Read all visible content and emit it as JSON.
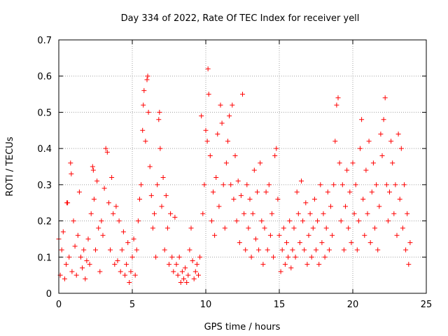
{
  "chart_data": {
    "type": "scatter",
    "title": "Day 334 of 2022, Rate Of TEC Index for receiver yell",
    "xlabel": "GPS time / hours",
    "ylabel": "ROTI / TECUs",
    "xlim": [
      0,
      25
    ],
    "ylim": [
      0,
      0.7
    ],
    "xticks": [
      "0",
      "5",
      "10",
      "15",
      "20",
      "25"
    ],
    "yticks": [
      "0",
      "0.1",
      "0.2",
      "0.3",
      "0.4",
      "0.5",
      "0.6",
      "0.7"
    ],
    "xtick_values": [
      0,
      5,
      10,
      15,
      20,
      25
    ],
    "ytick_values": [
      0,
      0.1,
      0.2,
      0.3,
      0.4,
      0.5,
      0.6,
      0.7
    ],
    "grid": true,
    "marker": "+",
    "color": "#ff0000",
    "series": [
      {
        "points": [
          [
            0.0,
            0.15
          ],
          [
            0.1,
            0.05
          ],
          [
            0.2,
            0.12
          ],
          [
            0.3,
            0.17
          ],
          [
            0.4,
            0.04
          ],
          [
            0.5,
            0.08
          ],
          [
            0.55,
            0.25
          ],
          [
            0.6,
            0.25
          ],
          [
            0.7,
            0.1
          ],
          [
            0.8,
            0.36
          ],
          [
            0.85,
            0.33
          ],
          [
            0.9,
            0.06
          ],
          [
            1.0,
            0.2
          ],
          [
            1.1,
            0.13
          ],
          [
            1.2,
            0.05
          ],
          [
            1.3,
            0.16
          ],
          [
            1.4,
            0.28
          ],
          [
            1.5,
            0.1
          ],
          [
            1.6,
            0.07
          ],
          [
            1.7,
            0.12
          ],
          [
            1.8,
            0.04
          ],
          [
            1.9,
            0.09
          ],
          [
            2.0,
            0.15
          ],
          [
            2.1,
            0.08
          ],
          [
            2.2,
            0.22
          ],
          [
            2.3,
            0.35
          ],
          [
            2.35,
            0.34
          ],
          [
            2.4,
            0.26
          ],
          [
            2.5,
            0.12
          ],
          [
            2.6,
            0.31
          ],
          [
            2.7,
            0.18
          ],
          [
            2.8,
            0.06
          ],
          [
            2.9,
            0.2
          ],
          [
            3.0,
            0.16
          ],
          [
            3.1,
            0.29
          ],
          [
            3.2,
            0.4
          ],
          [
            3.3,
            0.39
          ],
          [
            3.4,
            0.25
          ],
          [
            3.5,
            0.12
          ],
          [
            3.6,
            0.32
          ],
          [
            3.7,
            0.22
          ],
          [
            3.8,
            0.08
          ],
          [
            3.9,
            0.24
          ],
          [
            4.0,
            0.09
          ],
          [
            4.1,
            0.2
          ],
          [
            4.2,
            0.06
          ],
          [
            4.3,
            0.12
          ],
          [
            4.4,
            0.17
          ],
          [
            4.5,
            0.05
          ],
          [
            4.6,
            0.08
          ],
          [
            4.7,
            0.14
          ],
          [
            4.8,
            0.03
          ],
          [
            4.9,
            0.06
          ],
          [
            5.0,
            0.1
          ],
          [
            5.1,
            0.15
          ],
          [
            5.2,
            0.05
          ],
          [
            5.3,
            0.12
          ],
          [
            5.4,
            0.2
          ],
          [
            5.5,
            0.26
          ],
          [
            5.6,
            0.3
          ],
          [
            5.7,
            0.45
          ],
          [
            5.75,
            0.52
          ],
          [
            5.8,
            0.56
          ],
          [
            5.9,
            0.42
          ],
          [
            6.0,
            0.59
          ],
          [
            6.05,
            0.6
          ],
          [
            6.1,
            0.5
          ],
          [
            6.2,
            0.35
          ],
          [
            6.3,
            0.27
          ],
          [
            6.4,
            0.18
          ],
          [
            6.5,
            0.22
          ],
          [
            6.6,
            0.1
          ],
          [
            6.7,
            0.3
          ],
          [
            6.8,
            0.48
          ],
          [
            6.85,
            0.5
          ],
          [
            6.9,
            0.4
          ],
          [
            7.0,
            0.24
          ],
          [
            7.1,
            0.32
          ],
          [
            7.2,
            0.12
          ],
          [
            7.3,
            0.27
          ],
          [
            7.4,
            0.18
          ],
          [
            7.5,
            0.08
          ],
          [
            7.6,
            0.22
          ],
          [
            7.7,
            0.1
          ],
          [
            7.8,
            0.06
          ],
          [
            7.9,
            0.21
          ],
          [
            8.0,
            0.08
          ],
          [
            8.1,
            0.05
          ],
          [
            8.2,
            0.1
          ],
          [
            8.3,
            0.03
          ],
          [
            8.4,
            0.06
          ],
          [
            8.5,
            0.04
          ],
          [
            8.6,
            0.07
          ],
          [
            8.7,
            0.03
          ],
          [
            8.8,
            0.05
          ],
          [
            8.9,
            0.12
          ],
          [
            9.0,
            0.18
          ],
          [
            9.1,
            0.09
          ],
          [
            9.2,
            0.04
          ],
          [
            9.3,
            0.06
          ],
          [
            9.4,
            0.08
          ],
          [
            9.5,
            0.05
          ],
          [
            9.6,
            0.1
          ],
          [
            9.7,
            0.49
          ],
          [
            9.8,
            0.22
          ],
          [
            9.9,
            0.3
          ],
          [
            10.0,
            0.45
          ],
          [
            10.1,
            0.42
          ],
          [
            10.15,
            0.62
          ],
          [
            10.2,
            0.55
          ],
          [
            10.3,
            0.38
          ],
          [
            10.4,
            0.2
          ],
          [
            10.5,
            0.28
          ],
          [
            10.6,
            0.16
          ],
          [
            10.7,
            0.32
          ],
          [
            10.8,
            0.44
          ],
          [
            10.9,
            0.24
          ],
          [
            11.0,
            0.52
          ],
          [
            11.1,
            0.47
          ],
          [
            11.2,
            0.3
          ],
          [
            11.3,
            0.18
          ],
          [
            11.4,
            0.36
          ],
          [
            11.5,
            0.42
          ],
          [
            11.6,
            0.49
          ],
          [
            11.7,
            0.3
          ],
          [
            11.8,
            0.52
          ],
          [
            11.9,
            0.26
          ],
          [
            12.0,
            0.38
          ],
          [
            12.1,
            0.2
          ],
          [
            12.2,
            0.31
          ],
          [
            12.3,
            0.14
          ],
          [
            12.4,
            0.27
          ],
          [
            12.5,
            0.55
          ],
          [
            12.6,
            0.22
          ],
          [
            12.7,
            0.12
          ],
          [
            12.8,
            0.3
          ],
          [
            12.9,
            0.18
          ],
          [
            13.0,
            0.26
          ],
          [
            13.1,
            0.1
          ],
          [
            13.2,
            0.22
          ],
          [
            13.3,
            0.34
          ],
          [
            13.4,
            0.15
          ],
          [
            13.5,
            0.28
          ],
          [
            13.6,
            0.12
          ],
          [
            13.7,
            0.36
          ],
          [
            13.8,
            0.2
          ],
          [
            13.9,
            0.08
          ],
          [
            14.0,
            0.18
          ],
          [
            14.1,
            0.28
          ],
          [
            14.2,
            0.12
          ],
          [
            14.3,
            0.3
          ],
          [
            14.4,
            0.16
          ],
          [
            14.5,
            0.22
          ],
          [
            14.6,
            0.1
          ],
          [
            14.7,
            0.38
          ],
          [
            14.8,
            0.4
          ],
          [
            14.9,
            0.26
          ],
          [
            15.0,
            0.16
          ],
          [
            15.1,
            0.06
          ],
          [
            15.2,
            0.12
          ],
          [
            15.3,
            0.18
          ],
          [
            15.4,
            0.08
          ],
          [
            15.5,
            0.14
          ],
          [
            15.6,
            0.1
          ],
          [
            15.7,
            0.2
          ],
          [
            15.8,
            0.07
          ],
          [
            15.9,
            0.12
          ],
          [
            16.0,
            0.18
          ],
          [
            16.1,
            0.1
          ],
          [
            16.2,
            0.28
          ],
          [
            16.3,
            0.22
          ],
          [
            16.4,
            0.14
          ],
          [
            16.5,
            0.31
          ],
          [
            16.6,
            0.2
          ],
          [
            16.7,
            0.12
          ],
          [
            16.8,
            0.25
          ],
          [
            16.9,
            0.08
          ],
          [
            17.0,
            0.16
          ],
          [
            17.1,
            0.22
          ],
          [
            17.2,
            0.1
          ],
          [
            17.3,
            0.18
          ],
          [
            17.4,
            0.26
          ],
          [
            17.5,
            0.12
          ],
          [
            17.6,
            0.2
          ],
          [
            17.7,
            0.08
          ],
          [
            17.8,
            0.3
          ],
          [
            17.9,
            0.14
          ],
          [
            18.0,
            0.22
          ],
          [
            18.1,
            0.1
          ],
          [
            18.2,
            0.18
          ],
          [
            18.3,
            0.28
          ],
          [
            18.4,
            0.12
          ],
          [
            18.5,
            0.24
          ],
          [
            18.6,
            0.16
          ],
          [
            18.7,
            0.3
          ],
          [
            18.8,
            0.42
          ],
          [
            18.9,
            0.52
          ],
          [
            19.0,
            0.54
          ],
          [
            19.1,
            0.36
          ],
          [
            19.2,
            0.2
          ],
          [
            19.3,
            0.3
          ],
          [
            19.4,
            0.12
          ],
          [
            19.5,
            0.24
          ],
          [
            19.6,
            0.34
          ],
          [
            19.7,
            0.18
          ],
          [
            19.8,
            0.28
          ],
          [
            19.9,
            0.14
          ],
          [
            20.0,
            0.36
          ],
          [
            20.1,
            0.22
          ],
          [
            20.2,
            0.3
          ],
          [
            20.3,
            0.12
          ],
          [
            20.4,
            0.2
          ],
          [
            20.5,
            0.4
          ],
          [
            20.6,
            0.48
          ],
          [
            20.7,
            0.26
          ],
          [
            20.8,
            0.16
          ],
          [
            20.9,
            0.34
          ],
          [
            21.0,
            0.22
          ],
          [
            21.1,
            0.42
          ],
          [
            21.2,
            0.14
          ],
          [
            21.3,
            0.28
          ],
          [
            21.4,
            0.36
          ],
          [
            21.5,
            0.18
          ],
          [
            21.6,
            0.3
          ],
          [
            21.7,
            0.12
          ],
          [
            21.8,
            0.24
          ],
          [
            21.9,
            0.44
          ],
          [
            22.0,
            0.38
          ],
          [
            22.1,
            0.48
          ],
          [
            22.2,
            0.54
          ],
          [
            22.3,
            0.3
          ],
          [
            22.4,
            0.2
          ],
          [
            22.5,
            0.28
          ],
          [
            22.6,
            0.42
          ],
          [
            22.7,
            0.36
          ],
          [
            22.8,
            0.22
          ],
          [
            22.9,
            0.3
          ],
          [
            23.0,
            0.16
          ],
          [
            23.1,
            0.44
          ],
          [
            23.2,
            0.26
          ],
          [
            23.3,
            0.4
          ],
          [
            23.4,
            0.18
          ],
          [
            23.5,
            0.3
          ],
          [
            23.6,
            0.12
          ],
          [
            23.7,
            0.22
          ],
          [
            23.8,
            0.08
          ],
          [
            23.9,
            0.14
          ]
        ]
      }
    ]
  }
}
